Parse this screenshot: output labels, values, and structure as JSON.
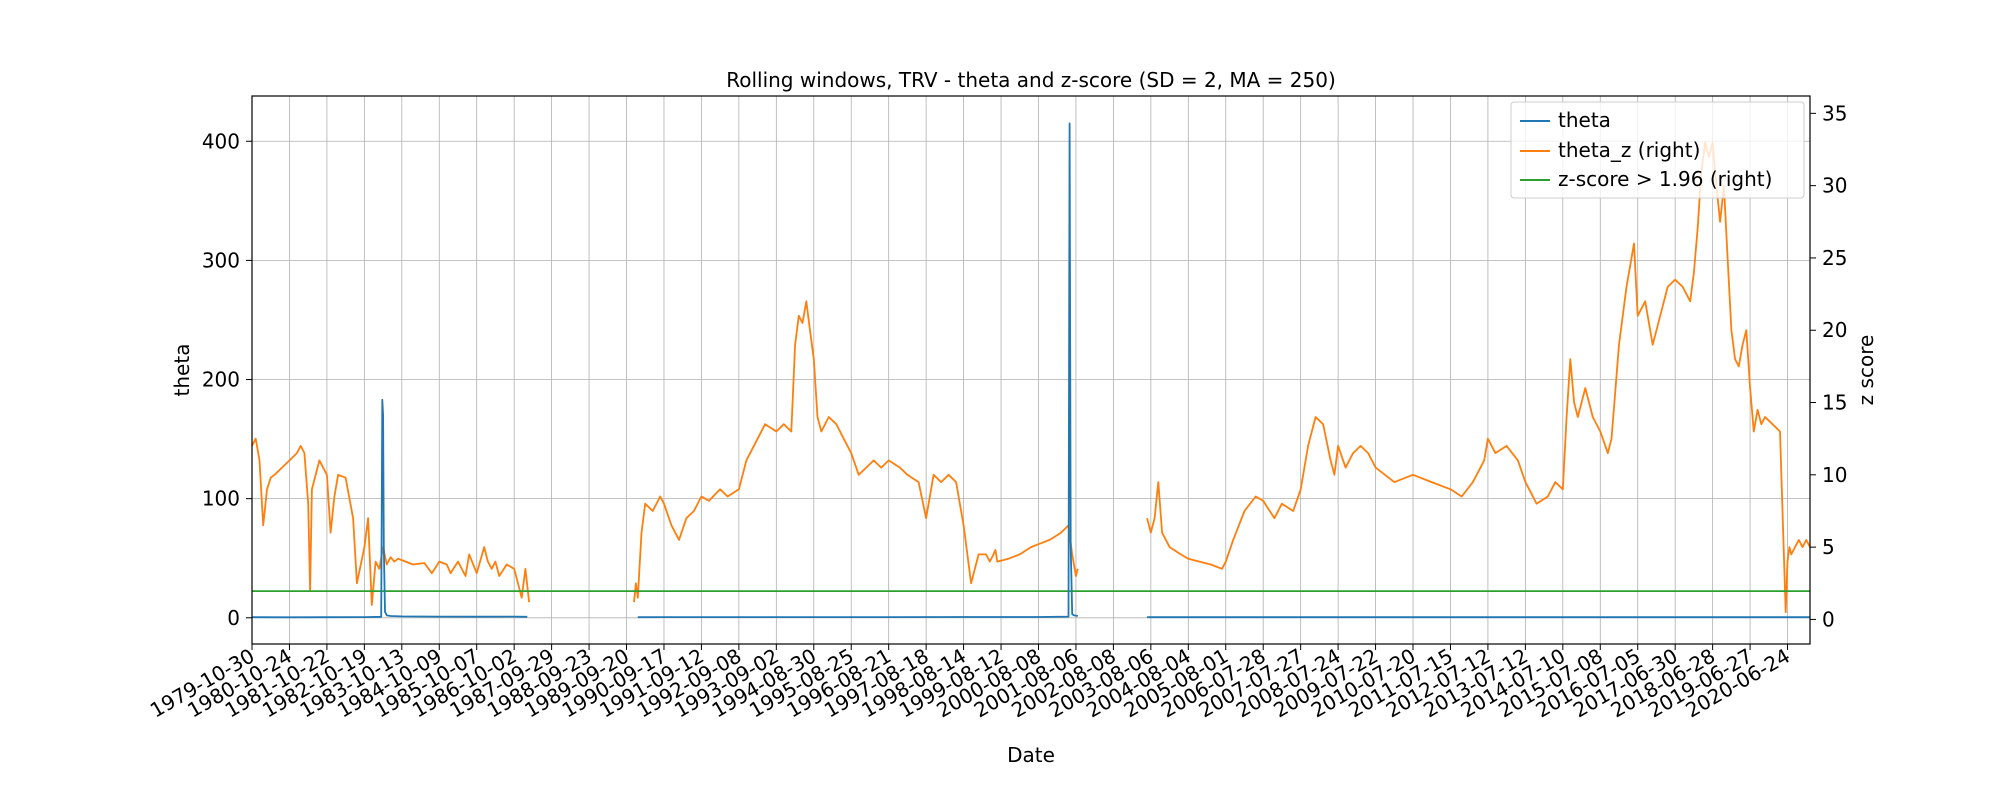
{
  "chart_data": {
    "type": "line",
    "title": "Rolling windows, TRV - theta and z-score (SD = 2, MA = 250)",
    "xlabel": "Date",
    "ylabel": "theta",
    "y2label": "z score",
    "grid": true,
    "legend_position": "top-right",
    "ylim": [
      -22,
      438
    ],
    "yticks": [
      0,
      100,
      200,
      300,
      400
    ],
    "y2lim": [
      -1.7,
      36.2
    ],
    "y2ticks": [
      0,
      5,
      10,
      15,
      20,
      25,
      30,
      35
    ],
    "x_tick_labels": [
      "1979-10-30",
      "1980-10-24",
      "1981-10-22",
      "1982-10-19",
      "1983-10-13",
      "1984-10-09",
      "1985-10-07",
      "1986-10-02",
      "1987-09-29",
      "1988-09-23",
      "1989-09-20",
      "1990-09-17",
      "1991-09-12",
      "1992-09-08",
      "1993-09-02",
      "1994-08-30",
      "1995-08-25",
      "1996-08-21",
      "1997-08-18",
      "1998-08-14",
      "1999-08-12",
      "2000-08-08",
      "2001-08-06",
      "2002-08-08",
      "2003-08-06",
      "2004-08-04",
      "2005-08-01",
      "2006-07-28",
      "2007-07-27",
      "2008-07-24",
      "2009-07-22",
      "2010-07-20",
      "2011-07-15",
      "2012-07-12",
      "2013-07-12",
      "2014-07-10",
      "2015-07-08",
      "2016-07-05",
      "2017-06-30",
      "2018-06-28",
      "2019-06-27",
      "2020-06-24"
    ],
    "x_tick_start_index": 0,
    "x_tick_step": 1,
    "x_range_index": [
      0,
      41.6
    ],
    "series": [
      {
        "name": "theta",
        "axis": "left",
        "color": "#1f77b4",
        "x": [
          0.0,
          1.0,
          2.0,
          3.0,
          3.45,
          3.48,
          3.5,
          3.52,
          3.55,
          3.6,
          3.7,
          4.0,
          5.0,
          6.0,
          7.0,
          7.35,
          null,
          10.3,
          11.0,
          13.0,
          15.0,
          17.0,
          19.0,
          21.0,
          21.8,
          21.83,
          21.86,
          21.9,
          21.95,
          22.05,
          null,
          23.9,
          26.0,
          30.0,
          35.0,
          40.0,
          41.6
        ],
        "values": [
          0.5,
          0.4,
          0.5,
          0.6,
          0.8,
          183,
          170,
          60,
          5,
          2,
          1.5,
          1.2,
          1.0,
          0.9,
          1.0,
          0.8,
          null,
          0.5,
          0.6,
          0.6,
          0.6,
          0.6,
          0.7,
          0.7,
          1.0,
          415,
          60,
          3,
          2,
          1.5,
          null,
          0.5,
          0.5,
          0.5,
          0.5,
          0.5,
          0.5
        ]
      },
      {
        "name": "theta_z (right)",
        "axis": "right",
        "color": "#ff7f0e",
        "x": [
          0.0,
          0.1,
          0.2,
          0.3,
          0.4,
          0.5,
          0.6,
          0.8,
          1.0,
          1.2,
          1.3,
          1.4,
          1.5,
          1.55,
          1.6,
          1.8,
          2.0,
          2.1,
          2.2,
          2.3,
          2.5,
          2.7,
          2.8,
          3.0,
          3.1,
          3.2,
          3.3,
          3.4,
          3.5,
          3.6,
          3.7,
          3.8,
          3.9,
          4.0,
          4.3,
          4.6,
          4.8,
          5.0,
          5.2,
          5.3,
          5.5,
          5.7,
          5.8,
          6.0,
          6.2,
          6.3,
          6.4,
          6.5,
          6.6,
          6.8,
          7.0,
          7.2,
          7.3,
          7.4,
          null,
          10.2,
          10.25,
          10.3,
          10.4,
          10.5,
          10.7,
          10.9,
          11.0,
          11.2,
          11.4,
          11.6,
          11.8,
          12.0,
          12.2,
          12.5,
          12.7,
          13.0,
          13.2,
          13.5,
          13.7,
          14.0,
          14.2,
          14.4,
          14.5,
          14.6,
          14.7,
          14.8,
          14.9,
          15.0,
          15.1,
          15.2,
          15.4,
          15.6,
          15.8,
          16.0,
          16.2,
          16.4,
          16.6,
          16.8,
          17.0,
          17.3,
          17.5,
          17.8,
          18.0,
          18.2,
          18.4,
          18.6,
          18.8,
          19.0,
          19.2,
          19.4,
          19.6,
          19.7,
          19.8,
          19.85,
          19.9,
          20.2,
          20.5,
          20.8,
          21.0,
          21.3,
          21.6,
          21.8,
          21.9,
          22.0,
          22.05,
          null,
          23.9,
          24.0,
          24.1,
          24.2,
          24.3,
          24.5,
          24.8,
          25.0,
          25.3,
          25.6,
          25.9,
          26.0,
          26.2,
          26.5,
          26.8,
          27.0,
          27.3,
          27.5,
          27.8,
          28.0,
          28.2,
          28.4,
          28.6,
          28.8,
          28.9,
          29.0,
          29.2,
          29.4,
          29.6,
          29.8,
          30.0,
          30.5,
          31.0,
          31.5,
          32.0,
          32.3,
          32.6,
          32.9,
          33.0,
          33.2,
          33.5,
          33.8,
          34.0,
          34.3,
          34.6,
          34.8,
          35.0,
          35.1,
          35.2,
          35.3,
          35.4,
          35.6,
          35.8,
          36.0,
          36.2,
          36.3,
          36.5,
          36.7,
          36.9,
          37.0,
          37.2,
          37.4,
          37.6,
          37.8,
          38.0,
          38.2,
          38.4,
          38.5,
          38.6,
          38.7,
          38.8,
          38.9,
          39.0,
          39.1,
          39.2,
          39.3,
          39.4,
          39.5,
          39.6,
          39.7,
          39.8,
          39.9,
          40.0,
          40.1,
          40.2,
          40.3,
          40.4,
          40.6,
          40.8,
          40.95,
          41.0,
          41.05,
          41.1,
          41.2,
          41.3,
          41.4,
          41.5,
          41.6
        ],
        "values": [
          12,
          12.5,
          11,
          6.5,
          9,
          9.8,
          10,
          10.5,
          11,
          11.5,
          12,
          11.5,
          8,
          2,
          9,
          11,
          10,
          6,
          8.5,
          10,
          9.8,
          7,
          2.5,
          5,
          7,
          1,
          4,
          3.5,
          5,
          3.8,
          4.3,
          4,
          4.2,
          4.1,
          3.8,
          3.9,
          3.2,
          4,
          3.8,
          3.2,
          4,
          3,
          4.5,
          3.2,
          5,
          4,
          3.5,
          4,
          3,
          3.8,
          3.5,
          1.5,
          3.5,
          1.2,
          null,
          1.2,
          2.5,
          1.5,
          6,
          8,
          7.5,
          8.5,
          8,
          6.5,
          5.5,
          7,
          7.5,
          8.5,
          8.2,
          9,
          8.5,
          9,
          11,
          12.5,
          13.5,
          13,
          13.5,
          13,
          19,
          21,
          20.5,
          22,
          20,
          18,
          14,
          13,
          14,
          13.5,
          12.5,
          11.5,
          10,
          10.5,
          11,
          10.5,
          11,
          10.5,
          10,
          9.5,
          7,
          10,
          9.5,
          10,
          9.5,
          6.5,
          2.5,
          4.5,
          4.5,
          4,
          4.5,
          4.8,
          4,
          4.2,
          4.5,
          5,
          5.2,
          5.5,
          6,
          6.5,
          4.5,
          3,
          3.5,
          null,
          7,
          6,
          7,
          9.5,
          6,
          5,
          4.5,
          4.2,
          4,
          3.8,
          3.5,
          4,
          5.5,
          7.5,
          8.5,
          8.2,
          7,
          8,
          7.5,
          9,
          12,
          14,
          13.5,
          11,
          10,
          12,
          10.5,
          11.5,
          12,
          11.5,
          10.5,
          9.5,
          10,
          9.5,
          9,
          8.5,
          9.5,
          11,
          12.5,
          11.5,
          12,
          11,
          9.5,
          8,
          8.5,
          9.5,
          9,
          14,
          18,
          15,
          14,
          16,
          14,
          13,
          11.5,
          12.5,
          19,
          23,
          26,
          21,
          22,
          19,
          21,
          23,
          23.5,
          23,
          22,
          24,
          27,
          31,
          33,
          32,
          33,
          30,
          27.5,
          30,
          25,
          20,
          18,
          17.5,
          19,
          20,
          16,
          13,
          14.5,
          13.5,
          14,
          13.5,
          13,
          0.5,
          4,
          5,
          4.5,
          5,
          5.5,
          5,
          5.5,
          5
        ]
      },
      {
        "name": "z-score > 1.96 (right)",
        "axis": "right",
        "color": "#2ca02c",
        "x": [
          0,
          41.6
        ],
        "values": [
          1.96,
          1.96
        ]
      }
    ]
  }
}
